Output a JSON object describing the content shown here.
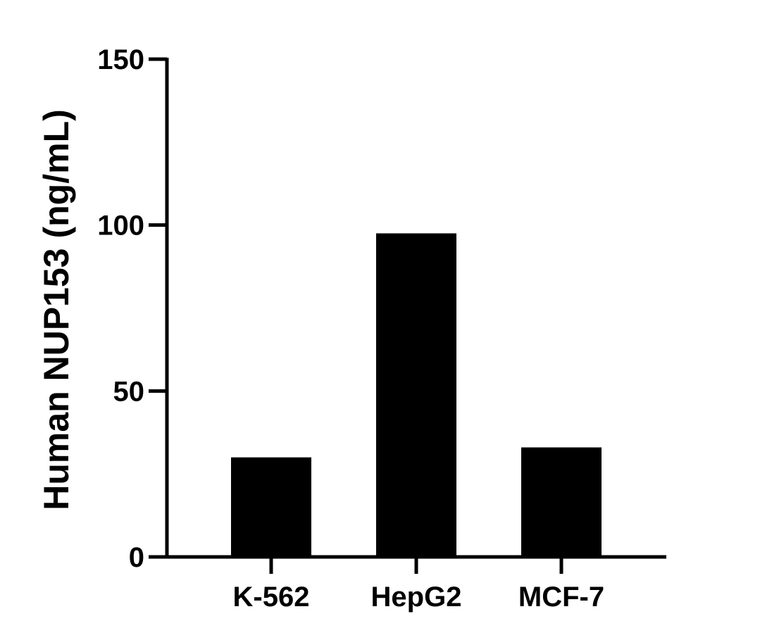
{
  "chart_data": {
    "type": "bar",
    "title": "",
    "xlabel": "",
    "ylabel": "Human NUP153 (ng/mL)",
    "categories": [
      "K-562",
      "HepG2",
      "MCF-7"
    ],
    "values": [
      30,
      97.5,
      33
    ],
    "ylim": [
      0,
      150
    ],
    "yticks": [
      0,
      50,
      100,
      150
    ],
    "grid": false,
    "legend": null,
    "bar_color": "#000000"
  }
}
